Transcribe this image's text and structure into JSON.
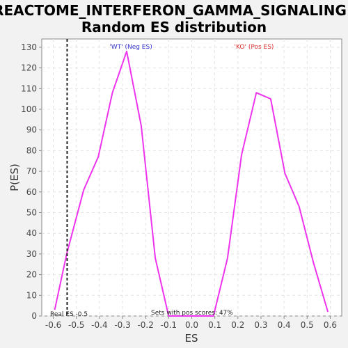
{
  "chart_data": {
    "type": "line",
    "title_line1": "REACTOME_INTERFERON_GAMMA_SIGNALING:",
    "title_line2": "Random ES distribution",
    "xlabel": "ES",
    "ylabel": "P(ES)",
    "xlim": [
      -0.65,
      0.65
    ],
    "ylim": [
      0,
      134
    ],
    "grid": true,
    "x_ticks": [
      -0.6,
      -0.5,
      -0.4,
      -0.3,
      -0.2,
      -0.1,
      0.0,
      0.1,
      0.2,
      0.3,
      0.4,
      0.5,
      0.6
    ],
    "x_tick_labels": [
      "-0.6",
      "-0.5",
      "-0.4",
      "-0.3",
      "-0.2",
      "-0.1",
      "0.0",
      "0.1",
      "0.2",
      "0.3",
      "0.4",
      "0.5",
      "0.6"
    ],
    "y_ticks": [
      0,
      10,
      20,
      30,
      40,
      50,
      60,
      70,
      80,
      90,
      100,
      110,
      120,
      130
    ],
    "y_tick_labels": [
      "0",
      "10",
      "20",
      "30",
      "40",
      "50",
      "60",
      "70",
      "80",
      "90",
      "100",
      "110",
      "120",
      "130"
    ],
    "series": [
      {
        "color": "#ee33ee",
        "x": [
          -0.594,
          -0.542,
          -0.468,
          -0.405,
          -0.344,
          -0.282,
          -0.219,
          -0.158,
          -0.1,
          -0.04,
          0.03,
          0.094,
          0.155,
          0.216,
          0.28,
          0.342,
          0.404,
          0.465,
          0.527,
          0.59
        ],
        "y": [
          3,
          30,
          61,
          77,
          108,
          128,
          92,
          28,
          0,
          0,
          0,
          0,
          28,
          78,
          108,
          105,
          69,
          53,
          26,
          2
        ]
      }
    ],
    "real_es": -0.54,
    "real_es_label": "Real ES -0.5",
    "neg_label": "'WT' (Neg ES)",
    "pos_label": "'KO' (Pos ES)",
    "neg_color": "#3333cc",
    "pos_color": "#dd3333",
    "footnote": "Sets with pos scores: 47%"
  }
}
